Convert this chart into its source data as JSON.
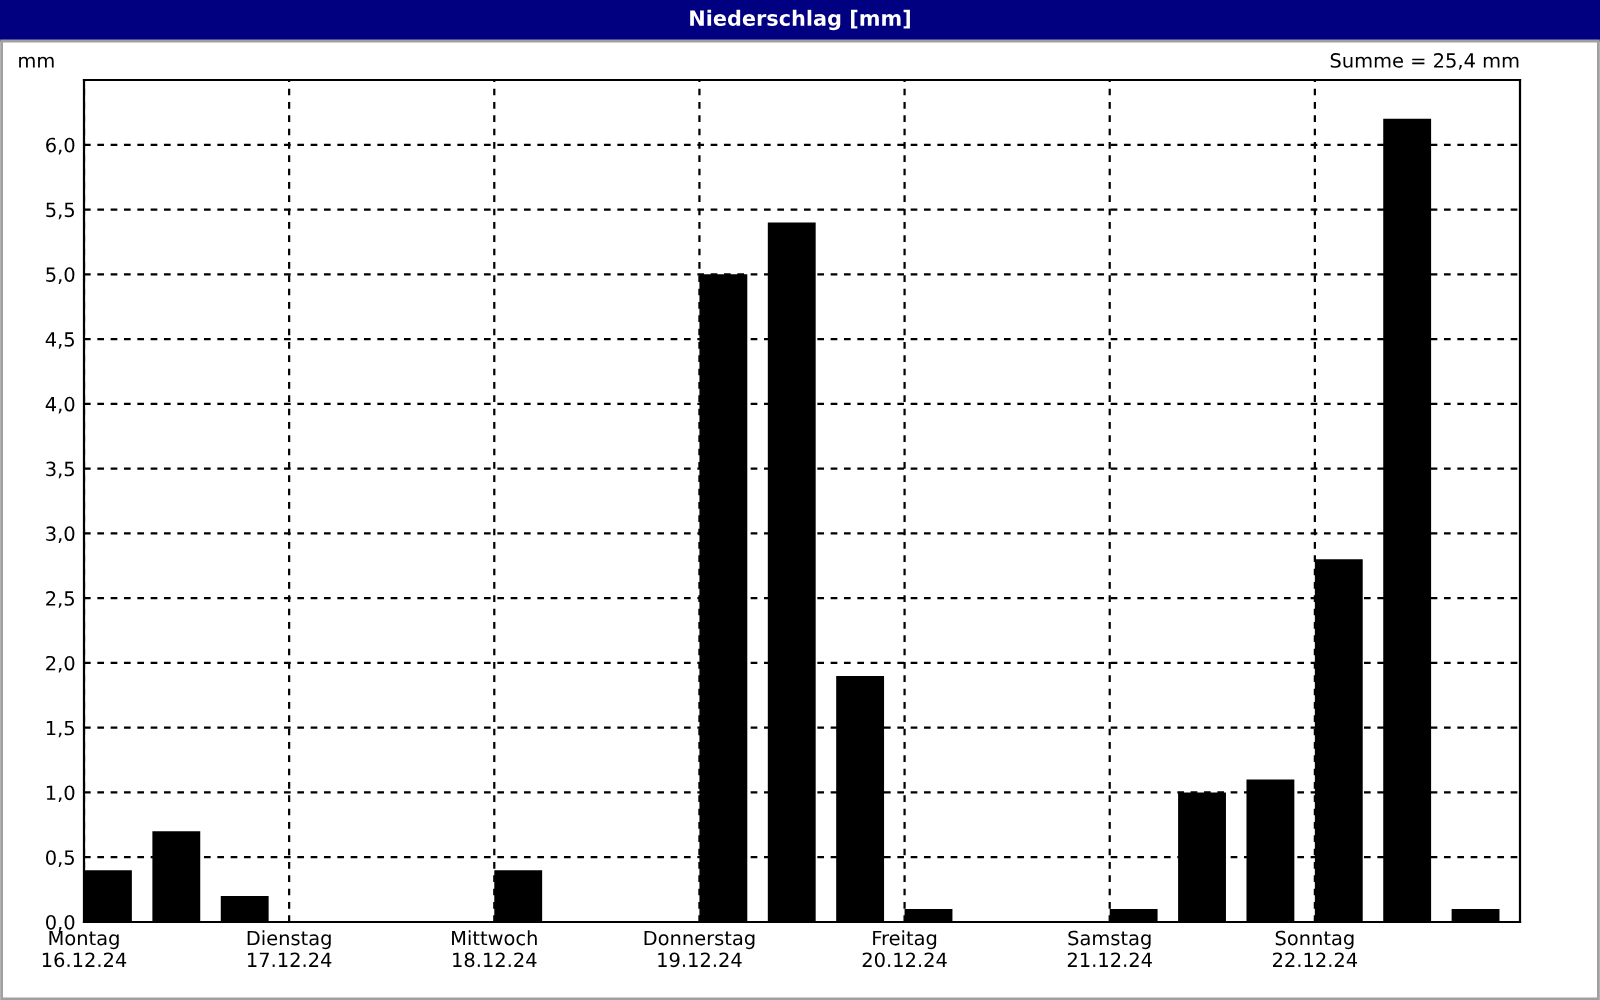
{
  "chart_data": {
    "type": "bar",
    "title": "Niederschlag [mm]",
    "ylabel": "mm",
    "annotations": [
      "Summe = 25,4 mm"
    ],
    "categories": [
      "Montag\n16.12.24",
      null,
      null,
      "Dienstag\n17.12.24",
      null,
      null,
      "Mittwoch\n18.12.24",
      null,
      null,
      "Donnerstag\n19.12.24",
      null,
      null,
      "Freitag\n20.12.24",
      null,
      null,
      "Samstag\n21.12.24",
      null,
      null,
      "Sonntag\n22.12.24",
      null,
      null
    ],
    "values": [
      0.4,
      0.7,
      0.2,
      0,
      0,
      0,
      0.4,
      0,
      0,
      5.0,
      5.4,
      1.9,
      0.1,
      0,
      0,
      0.1,
      1.0,
      1.1,
      2.8,
      6.2,
      0.1
    ],
    "color": "#000000",
    "ylim": [
      0,
      6.5
    ],
    "yticks": [
      {
        "value": 0,
        "label": "0,0"
      },
      {
        "value": 0.5,
        "label": "0,5"
      },
      {
        "value": 1,
        "label": "1,0"
      },
      {
        "value": 1.5,
        "label": "1,5"
      },
      {
        "value": 2,
        "label": "2,0"
      },
      {
        "value": 2.5,
        "label": "2,5"
      },
      {
        "value": 3,
        "label": "3,0"
      },
      {
        "value": 3.5,
        "label": "3,5"
      },
      {
        "value": 4,
        "label": "4,0"
      },
      {
        "value": 4.5,
        "label": "4,5"
      },
      {
        "value": 5,
        "label": "5,0"
      },
      {
        "value": 5.5,
        "label": "5,5"
      },
      {
        "value": 6,
        "label": "6,0"
      }
    ],
    "grid": true
  }
}
